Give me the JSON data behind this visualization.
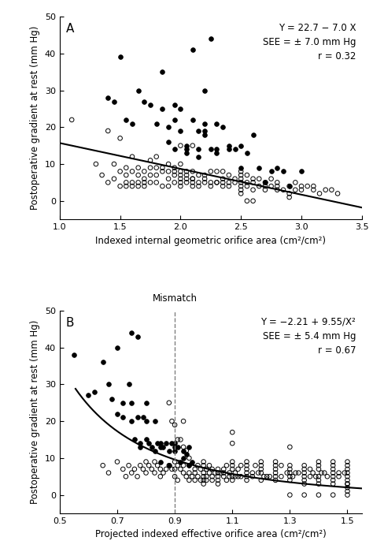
{
  "panel_A": {
    "label": "A",
    "xlabel": "Indexed internal geometric orifice area (cm²/cm²)",
    "ylabel": "Postoperative gradient at rest (mm Hg)",
    "xlim": [
      1.0,
      3.5
    ],
    "ylim": [
      -5,
      50
    ],
    "xticks": [
      1.0,
      1.5,
      2.0,
      2.5,
      3.0,
      3.5
    ],
    "yticks": [
      0,
      10,
      20,
      30,
      40,
      50
    ],
    "equation": "Y = 22.7 − 7.0 X",
    "see": "SEE = ± 7.0 mm Hg",
    "r_val": "r = 0.32",
    "line_slope": -7.0,
    "line_intercept": 22.7,
    "line_x": [
      1.0,
      3.5
    ],
    "filled_dots": [
      [
        1.4,
        28
      ],
      [
        1.45,
        27
      ],
      [
        1.5,
        39
      ],
      [
        1.55,
        22
      ],
      [
        1.6,
        21
      ],
      [
        1.65,
        30
      ],
      [
        1.7,
        27
      ],
      [
        1.75,
        26
      ],
      [
        1.8,
        21
      ],
      [
        1.85,
        35
      ],
      [
        1.85,
        25
      ],
      [
        1.9,
        20
      ],
      [
        1.9,
        16
      ],
      [
        1.95,
        26
      ],
      [
        1.95,
        22
      ],
      [
        1.95,
        14
      ],
      [
        2.0,
        25
      ],
      [
        2.0,
        19
      ],
      [
        2.05,
        15
      ],
      [
        2.05,
        14
      ],
      [
        2.05,
        13
      ],
      [
        2.1,
        41
      ],
      [
        2.1,
        22
      ],
      [
        2.15,
        14
      ],
      [
        2.15,
        19
      ],
      [
        2.15,
        12
      ],
      [
        2.2,
        30
      ],
      [
        2.2,
        21
      ],
      [
        2.2,
        19
      ],
      [
        2.2,
        18
      ],
      [
        2.25,
        44
      ],
      [
        2.25,
        14
      ],
      [
        2.3,
        21
      ],
      [
        2.3,
        14
      ],
      [
        2.3,
        13
      ],
      [
        2.35,
        20
      ],
      [
        2.4,
        15
      ],
      [
        2.4,
        14
      ],
      [
        2.45,
        14
      ],
      [
        2.5,
        15
      ],
      [
        2.5,
        9
      ],
      [
        2.55,
        13
      ],
      [
        2.6,
        18
      ],
      [
        2.65,
        9
      ],
      [
        2.7,
        5
      ],
      [
        2.75,
        8
      ],
      [
        2.8,
        9
      ],
      [
        2.85,
        8
      ],
      [
        2.9,
        4
      ],
      [
        3.0,
        8
      ]
    ],
    "open_dots": [
      [
        1.1,
        22
      ],
      [
        1.3,
        10
      ],
      [
        1.35,
        7
      ],
      [
        1.4,
        19
      ],
      [
        1.45,
        10
      ],
      [
        1.5,
        8
      ],
      [
        1.5,
        17
      ],
      [
        1.55,
        9
      ],
      [
        1.55,
        7
      ],
      [
        1.6,
        8
      ],
      [
        1.6,
        12
      ],
      [
        1.65,
        9
      ],
      [
        1.65,
        7
      ],
      [
        1.7,
        8
      ],
      [
        1.7,
        6
      ],
      [
        1.75,
        9
      ],
      [
        1.75,
        7
      ],
      [
        1.75,
        11
      ],
      [
        1.8,
        9
      ],
      [
        1.8,
        7
      ],
      [
        1.8,
        12
      ],
      [
        1.85,
        8
      ],
      [
        1.85,
        9
      ],
      [
        1.9,
        10
      ],
      [
        1.9,
        8
      ],
      [
        1.9,
        6
      ],
      [
        1.95,
        8
      ],
      [
        1.95,
        9
      ],
      [
        1.95,
        7
      ],
      [
        2.0,
        10
      ],
      [
        2.0,
        7
      ],
      [
        2.0,
        6
      ],
      [
        2.0,
        5
      ],
      [
        2.0,
        8
      ],
      [
        2.0,
        15
      ],
      [
        2.05,
        7
      ],
      [
        2.05,
        6
      ],
      [
        2.05,
        8
      ],
      [
        2.1,
        6
      ],
      [
        2.1,
        8
      ],
      [
        2.1,
        5
      ],
      [
        2.1,
        4
      ],
      [
        2.1,
        15
      ],
      [
        2.15,
        7
      ],
      [
        2.15,
        5
      ],
      [
        2.2,
        7
      ],
      [
        2.2,
        6
      ],
      [
        2.25,
        5
      ],
      [
        2.25,
        8
      ],
      [
        2.3,
        5
      ],
      [
        2.3,
        8
      ],
      [
        2.35,
        6
      ],
      [
        2.35,
        5
      ],
      [
        2.35,
        8
      ],
      [
        2.4,
        7
      ],
      [
        2.4,
        5
      ],
      [
        2.4,
        4
      ],
      [
        2.45,
        6
      ],
      [
        2.45,
        5
      ],
      [
        2.5,
        5
      ],
      [
        2.5,
        7
      ],
      [
        2.5,
        4
      ],
      [
        2.5,
        3
      ],
      [
        2.5,
        6
      ],
      [
        2.55,
        5
      ],
      [
        2.55,
        7
      ],
      [
        2.55,
        4
      ],
      [
        2.6,
        5
      ],
      [
        2.6,
        3
      ],
      [
        2.65,
        6
      ],
      [
        2.65,
        4
      ],
      [
        2.7,
        5
      ],
      [
        2.7,
        3
      ],
      [
        2.75,
        4
      ],
      [
        2.75,
        6
      ],
      [
        2.8,
        5
      ],
      [
        2.8,
        4
      ],
      [
        2.85,
        3
      ],
      [
        2.9,
        4
      ],
      [
        2.9,
        1
      ],
      [
        2.95,
        3
      ],
      [
        2.95,
        5
      ],
      [
        3.0,
        3
      ],
      [
        3.05,
        4
      ],
      [
        3.1,
        3
      ],
      [
        3.15,
        2
      ],
      [
        3.2,
        3
      ],
      [
        3.25,
        3
      ],
      [
        3.3,
        2
      ],
      [
        2.55,
        0
      ],
      [
        2.6,
        0
      ],
      [
        1.4,
        5
      ],
      [
        1.45,
        6
      ],
      [
        1.5,
        4
      ],
      [
        1.55,
        5
      ],
      [
        1.6,
        4
      ],
      [
        1.65,
        5
      ],
      [
        1.7,
        4
      ],
      [
        1.75,
        5
      ],
      [
        1.8,
        5
      ],
      [
        1.85,
        4
      ],
      [
        1.9,
        4
      ],
      [
        1.95,
        5
      ],
      [
        2.0,
        4
      ],
      [
        2.05,
        5
      ],
      [
        2.1,
        6
      ],
      [
        2.15,
        4
      ],
      [
        2.2,
        5
      ],
      [
        2.25,
        4
      ],
      [
        2.3,
        5
      ],
      [
        2.35,
        4
      ],
      [
        1.55,
        4
      ],
      [
        1.6,
        5
      ],
      [
        1.65,
        4
      ],
      [
        1.7,
        5
      ],
      [
        2.5,
        8
      ],
      [
        2.5,
        2
      ],
      [
        2.6,
        6
      ],
      [
        2.7,
        4
      ],
      [
        2.8,
        3
      ],
      [
        2.9,
        2
      ],
      [
        3.0,
        4
      ],
      [
        3.1,
        4
      ]
    ]
  },
  "panel_B": {
    "label": "B",
    "xlabel": "Projected indexed effective orifice area (cm²/cm²)",
    "ylabel": "Postoperative gradient at rest (mm Hg)",
    "xlim": [
      0.5,
      1.55
    ],
    "ylim": [
      -5,
      50
    ],
    "xticks": [
      0.5,
      0.7,
      0.9,
      1.1,
      1.3,
      1.5
    ],
    "yticks": [
      0,
      10,
      20,
      30,
      40,
      50
    ],
    "mismatch_x": 0.9,
    "mismatch_label": "Mismatch",
    "equation": "Y = −2.21 + 9.55/X²",
    "see": "SEE = ± 5.4 mm Hg",
    "r_val": "r = 0.67",
    "curve_a": -2.21,
    "curve_b": 9.55,
    "filled_dots": [
      [
        0.55,
        38
      ],
      [
        0.6,
        27
      ],
      [
        0.62,
        28
      ],
      [
        0.65,
        36
      ],
      [
        0.67,
        30
      ],
      [
        0.68,
        26
      ],
      [
        0.7,
        40
      ],
      [
        0.7,
        22
      ],
      [
        0.72,
        25
      ],
      [
        0.72,
        21
      ],
      [
        0.74,
        30
      ],
      [
        0.75,
        20
      ],
      [
        0.75,
        25
      ],
      [
        0.76,
        15
      ],
      [
        0.77,
        21
      ],
      [
        0.78,
        14
      ],
      [
        0.78,
        13
      ],
      [
        0.79,
        21
      ],
      [
        0.8,
        25
      ],
      [
        0.8,
        20
      ],
      [
        0.8,
        15
      ],
      [
        0.81,
        14
      ],
      [
        0.82,
        13
      ],
      [
        0.83,
        12
      ],
      [
        0.83,
        20
      ],
      [
        0.84,
        14
      ],
      [
        0.85,
        14
      ],
      [
        0.85,
        13
      ],
      [
        0.85,
        9
      ],
      [
        0.86,
        13
      ],
      [
        0.87,
        14
      ],
      [
        0.88,
        12
      ],
      [
        0.88,
        8
      ],
      [
        0.89,
        14
      ],
      [
        0.9,
        13
      ],
      [
        0.9,
        12
      ],
      [
        0.9,
        14
      ],
      [
        0.91,
        13
      ],
      [
        0.92,
        9
      ],
      [
        0.93,
        10
      ],
      [
        0.93,
        12
      ],
      [
        0.94,
        11
      ],
      [
        0.95,
        13
      ],
      [
        0.95,
        8
      ],
      [
        0.96,
        9
      ],
      [
        0.75,
        44
      ],
      [
        0.77,
        43
      ]
    ],
    "open_dots": [
      [
        0.65,
        8
      ],
      [
        0.67,
        6
      ],
      [
        0.7,
        9
      ],
      [
        0.72,
        7
      ],
      [
        0.73,
        5
      ],
      [
        0.74,
        8
      ],
      [
        0.75,
        6
      ],
      [
        0.76,
        7
      ],
      [
        0.77,
        5
      ],
      [
        0.78,
        8
      ],
      [
        0.79,
        7
      ],
      [
        0.8,
        6
      ],
      [
        0.8,
        9
      ],
      [
        0.81,
        8
      ],
      [
        0.82,
        7
      ],
      [
        0.83,
        6
      ],
      [
        0.83,
        9
      ],
      [
        0.84,
        8
      ],
      [
        0.85,
        5
      ],
      [
        0.85,
        7
      ],
      [
        0.86,
        6
      ],
      [
        0.87,
        7
      ],
      [
        0.88,
        8
      ],
      [
        0.89,
        7
      ],
      [
        0.9,
        9
      ],
      [
        0.9,
        5
      ],
      [
        0.9,
        7
      ],
      [
        0.91,
        8
      ],
      [
        0.91,
        4
      ],
      [
        0.92,
        7
      ],
      [
        0.93,
        6
      ],
      [
        0.93,
        8
      ],
      [
        0.94,
        5
      ],
      [
        0.95,
        6
      ],
      [
        0.95,
        8
      ],
      [
        0.96,
        5
      ],
      [
        0.97,
        7
      ],
      [
        0.97,
        6
      ],
      [
        0.98,
        8
      ],
      [
        0.98,
        5
      ],
      [
        0.99,
        7
      ],
      [
        1.0,
        6
      ],
      [
        1.0,
        8
      ],
      [
        1.0,
        9
      ],
      [
        1.0,
        4
      ],
      [
        1.01,
        7
      ],
      [
        1.01,
        5
      ],
      [
        1.02,
        6
      ],
      [
        1.02,
        8
      ],
      [
        1.03,
        7
      ],
      [
        1.03,
        5
      ],
      [
        1.04,
        6
      ],
      [
        1.05,
        7
      ],
      [
        1.05,
        5
      ],
      [
        1.06,
        6
      ],
      [
        1.07,
        7
      ],
      [
        1.07,
        5
      ],
      [
        1.08,
        8
      ],
      [
        1.08,
        4
      ],
      [
        1.09,
        6
      ],
      [
        1.1,
        7
      ],
      [
        1.1,
        5
      ],
      [
        1.1,
        9
      ],
      [
        1.1,
        14
      ],
      [
        1.1,
        17
      ],
      [
        1.11,
        6
      ],
      [
        1.12,
        7
      ],
      [
        1.12,
        5
      ],
      [
        1.13,
        8
      ],
      [
        1.15,
        6
      ],
      [
        1.15,
        7
      ],
      [
        1.17,
        5
      ],
      [
        1.18,
        8
      ],
      [
        1.2,
        6
      ],
      [
        1.2,
        7
      ],
      [
        1.22,
        5
      ],
      [
        1.25,
        7
      ],
      [
        1.25,
        6
      ],
      [
        1.27,
        8
      ],
      [
        1.3,
        5
      ],
      [
        1.3,
        7
      ],
      [
        1.3,
        13
      ],
      [
        1.32,
        6
      ],
      [
        1.35,
        5
      ],
      [
        1.37,
        7
      ],
      [
        1.38,
        6
      ],
      [
        1.4,
        7
      ],
      [
        1.4,
        5
      ],
      [
        1.42,
        6
      ],
      [
        1.45,
        7
      ],
      [
        1.45,
        5
      ],
      [
        1.47,
        6
      ],
      [
        1.5,
        5
      ],
      [
        1.5,
        7
      ],
      [
        1.5,
        3
      ],
      [
        1.5,
        8
      ],
      [
        1.5,
        6
      ],
      [
        1.5,
        4
      ],
      [
        0.88,
        25
      ],
      [
        0.89,
        20
      ],
      [
        0.9,
        19
      ],
      [
        0.91,
        15
      ],
      [
        0.92,
        15
      ],
      [
        0.93,
        13
      ],
      [
        0.93,
        20
      ],
      [
        0.94,
        12
      ],
      [
        0.95,
        10
      ],
      [
        1.0,
        5
      ],
      [
        1.05,
        4
      ],
      [
        1.1,
        4
      ],
      [
        1.15,
        4
      ],
      [
        1.2,
        4
      ],
      [
        1.25,
        4
      ],
      [
        1.3,
        4
      ],
      [
        1.35,
        3
      ],
      [
        1.4,
        3
      ],
      [
        1.45,
        3
      ],
      [
        1.5,
        3
      ],
      [
        1.5,
        0
      ],
      [
        1.0,
        3
      ],
      [
        1.05,
        3
      ],
      [
        1.5,
        2
      ],
      [
        0.95,
        4
      ],
      [
        0.97,
        4
      ],
      [
        0.99,
        4
      ],
      [
        1.01,
        4
      ],
      [
        1.03,
        4
      ],
      [
        1.05,
        6
      ],
      [
        1.07,
        6
      ],
      [
        1.09,
        5
      ],
      [
        1.11,
        5
      ],
      [
        1.13,
        5
      ],
      [
        1.15,
        5
      ],
      [
        1.17,
        6
      ],
      [
        1.19,
        6
      ],
      [
        1.21,
        5
      ],
      [
        1.23,
        5
      ],
      [
        1.25,
        5
      ],
      [
        1.27,
        5
      ],
      [
        1.29,
        6
      ],
      [
        1.31,
        5
      ],
      [
        1.33,
        6
      ],
      [
        1.35,
        6
      ],
      [
        1.37,
        5
      ],
      [
        1.39,
        5
      ],
      [
        1.41,
        6
      ],
      [
        1.43,
        5
      ],
      [
        1.45,
        6
      ],
      [
        1.47,
        5
      ],
      [
        1.49,
        6
      ],
      [
        1.1,
        8
      ],
      [
        1.15,
        8
      ],
      [
        1.2,
        8
      ],
      [
        1.25,
        8
      ],
      [
        1.3,
        8
      ],
      [
        1.35,
        7
      ],
      [
        1.4,
        8
      ],
      [
        1.45,
        8
      ],
      [
        1.5,
        9
      ],
      [
        1.15,
        9
      ],
      [
        1.2,
        9
      ],
      [
        1.25,
        9
      ],
      [
        1.3,
        6
      ],
      [
        1.35,
        4
      ],
      [
        1.4,
        4
      ],
      [
        1.45,
        4
      ],
      [
        1.3,
        0
      ],
      [
        1.35,
        0
      ],
      [
        1.4,
        0
      ],
      [
        1.45,
        0
      ],
      [
        1.5,
        1
      ],
      [
        1.35,
        8
      ],
      [
        1.4,
        9
      ],
      [
        1.45,
        9
      ]
    ]
  }
}
